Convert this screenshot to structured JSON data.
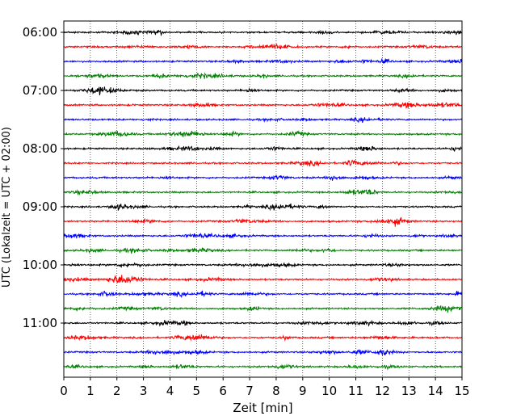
{
  "chart_data": {
    "type": "line",
    "title": "",
    "xlabel": "Zeit  [min]",
    "ylabel": "UTC (Lokalzeit = UTC + 02:00)",
    "xlim": [
      0,
      15
    ],
    "x_ticks": [
      "0",
      "1",
      "2",
      "3",
      "4",
      "5",
      "6",
      "7",
      "8",
      "9",
      "10",
      "11",
      "12",
      "13",
      "14",
      "15"
    ],
    "y_ticks": [
      "06:00",
      "07:00",
      "08:00",
      "09:00",
      "10:00",
      "11:00"
    ],
    "grid": "vertical dotted at each minute",
    "legend": "none",
    "trace_interval_min": 15,
    "trace_start": "06:00",
    "trace_count": 24,
    "trace_colors": [
      "#000000",
      "#ff0000",
      "#0000ff",
      "#008000"
    ],
    "series": [
      {
        "start": "06:00",
        "color": "#000000"
      },
      {
        "start": "06:15",
        "color": "#ff0000"
      },
      {
        "start": "06:30",
        "color": "#0000ff"
      },
      {
        "start": "06:45",
        "color": "#008000"
      },
      {
        "start": "07:00",
        "color": "#000000"
      },
      {
        "start": "07:15",
        "color": "#ff0000"
      },
      {
        "start": "07:30",
        "color": "#0000ff"
      },
      {
        "start": "07:45",
        "color": "#008000"
      },
      {
        "start": "08:00",
        "color": "#000000"
      },
      {
        "start": "08:15",
        "color": "#ff0000"
      },
      {
        "start": "08:30",
        "color": "#0000ff"
      },
      {
        "start": "08:45",
        "color": "#008000"
      },
      {
        "start": "09:00",
        "color": "#000000"
      },
      {
        "start": "09:15",
        "color": "#ff0000"
      },
      {
        "start": "09:30",
        "color": "#0000ff"
      },
      {
        "start": "09:45",
        "color": "#008000"
      },
      {
        "start": "10:00",
        "color": "#000000"
      },
      {
        "start": "10:15",
        "color": "#ff0000"
      },
      {
        "start": "10:30",
        "color": "#0000ff"
      },
      {
        "start": "10:45",
        "color": "#008000"
      },
      {
        "start": "11:00",
        "color": "#000000"
      },
      {
        "start": "11:15",
        "color": "#ff0000"
      },
      {
        "start": "11:30",
        "color": "#0000ff"
      },
      {
        "start": "11:45",
        "color": "#008000"
      }
    ]
  }
}
